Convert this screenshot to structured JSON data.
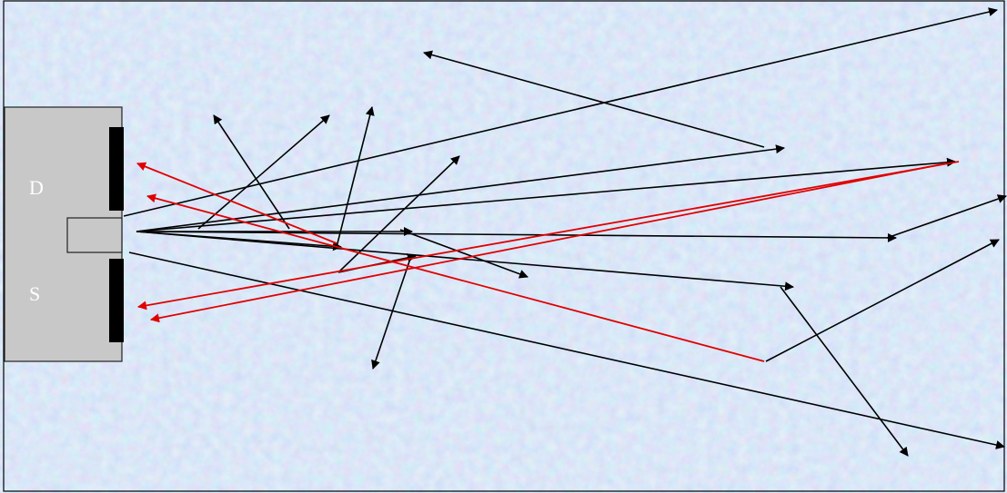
{
  "labels": {
    "top": "D",
    "bottom": "S"
  },
  "colors": {
    "background": "#b8cdea",
    "device_fill": "#c8c8c8",
    "device_stroke": "#222222",
    "electrode": "#000000",
    "black_arrow": "#000000",
    "red_arrow": "#e00000"
  }
}
